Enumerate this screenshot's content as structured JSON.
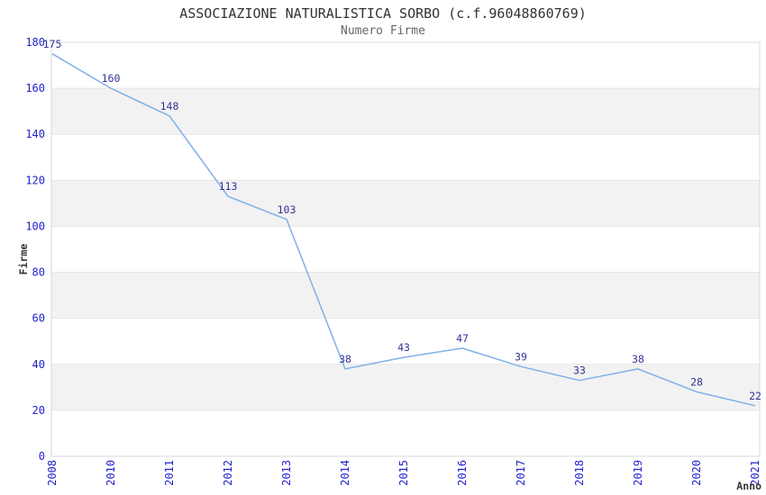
{
  "header": {
    "title": "ASSOCIAZIONE NATURALISTICA SORBO (c.f.96048860769)",
    "subtitle": "Numero Firme"
  },
  "chart_data": {
    "type": "line",
    "title": "ASSOCIAZIONE NATURALISTICA SORBO (c.f.96048860769)",
    "subtitle": "Numero Firme",
    "xlabel": "Anno",
    "ylabel": "Firme",
    "categories": [
      "2008",
      "2010",
      "2011",
      "2012",
      "2013",
      "2014",
      "2015",
      "2016",
      "2017",
      "2018",
      "2019",
      "2020",
      "2021"
    ],
    "values": [
      175,
      160,
      148,
      113,
      103,
      38,
      43,
      47,
      39,
      33,
      38,
      28,
      22
    ],
    "ylim": [
      0,
      180
    ],
    "ytick_step": 20,
    "yticks": [
      0,
      20,
      40,
      60,
      80,
      100,
      120,
      140,
      160,
      180
    ],
    "grid": "alternating-horizontal-bands",
    "legend_position": "none",
    "data_labels": true,
    "x_tick_rotation": -90,
    "colors": {
      "line": "#7fb0e8",
      "band": "#f2f2f2",
      "grid_line": "#e6e6e6",
      "plot_border": "#d8d8d8",
      "tick_label": "#2222cc",
      "data_label": "#333399",
      "axis_title": "#333333",
      "title": "#333333",
      "subtitle": "#666666",
      "background": "#ffffff"
    }
  }
}
